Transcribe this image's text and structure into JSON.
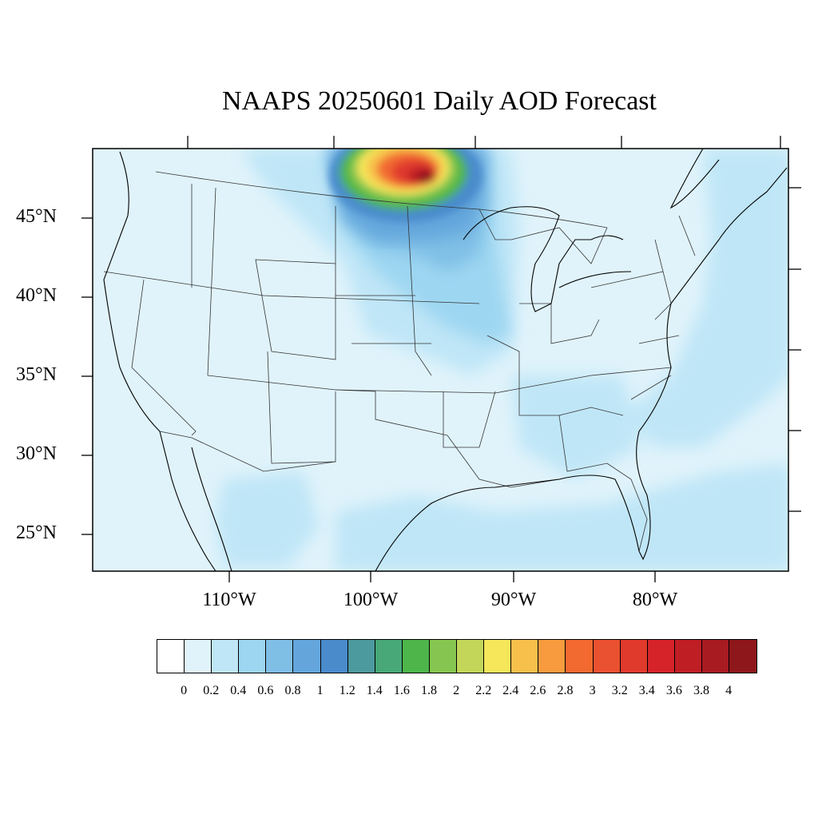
{
  "title": "NAAPS 20250601 Daily AOD Forecast",
  "map": {
    "projection": "Lambert conformal (CONUS)",
    "region": "Contiguous United States",
    "lat_ticks": [
      "45°N",
      "40°N",
      "35°N",
      "30°N",
      "25°N"
    ],
    "lon_ticks": [
      "110°W",
      "100°W",
      "90°W",
      "80°W"
    ],
    "lat_values": [
      45,
      40,
      35,
      30,
      25
    ],
    "lon_values": [
      -110,
      -100,
      -90,
      -80
    ],
    "background_aod": 0.2,
    "features": [
      {
        "name": "smoke plume over North Dakota / Manitoba / Minnesota border",
        "peak_aod": 4.0
      },
      {
        "name": "moderate AOD band over Upper Midwest and Great Lakes",
        "aod": 0.6
      },
      {
        "name": "moderate AOD band along Atlantic coast",
        "aod": 0.4
      },
      {
        "name": "moderate AOD over Gulf of Mexico and northern Mexico",
        "aod": 0.4
      }
    ]
  },
  "colorbar": {
    "labels": [
      "0",
      "0.2",
      "0.4",
      "0.6",
      "0.8",
      "1",
      "1.2",
      "1.4",
      "1.6",
      "1.8",
      "2",
      "2.2",
      "2.4",
      "2.6",
      "2.8",
      "3",
      "3.2",
      "3.4",
      "3.6",
      "3.8",
      "4"
    ],
    "colors": [
      "#ffffff",
      "#e0f3fb",
      "#bfe6f7",
      "#9dd6f1",
      "#7fbfe6",
      "#64a6dc",
      "#4a8bcc",
      "#4c9a9e",
      "#48a877",
      "#4db54a",
      "#86c650",
      "#c3d65a",
      "#f5e65a",
      "#f7c04b",
      "#f79b3e",
      "#f26a30",
      "#ea5131",
      "#e03a2d",
      "#d6232a",
      "#c01e25",
      "#a81b21",
      "#8e171b"
    ]
  }
}
